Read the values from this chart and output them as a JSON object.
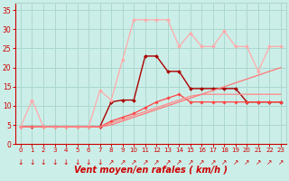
{
  "background_color": "#cceee8",
  "grid_color": "#aad8d0",
  "xlabel": "Vent moyen/en rafales ( km/h )",
  "xlabel_color": "#cc0000",
  "xlabel_fontsize": 7,
  "tick_color": "#cc0000",
  "ylim": [
    0,
    37
  ],
  "xlim": [
    -0.5,
    23.5
  ],
  "yticks": [
    0,
    5,
    10,
    15,
    20,
    25,
    30,
    35
  ],
  "xticks": [
    0,
    1,
    2,
    3,
    4,
    5,
    6,
    7,
    8,
    9,
    10,
    11,
    12,
    13,
    14,
    15,
    16,
    17,
    18,
    19,
    20,
    21,
    22,
    23
  ],
  "series": [
    {
      "x": [
        0,
        1,
        2,
        3,
        4,
        5,
        6,
        7,
        8,
        9,
        10,
        11,
        12,
        13,
        14,
        15,
        16,
        17,
        18,
        19,
        20,
        21,
        22,
        23
      ],
      "y": [
        4.5,
        4.5,
        4.5,
        4.5,
        4.5,
        4.5,
        4.5,
        4.5,
        11,
        11.5,
        11.5,
        23,
        23,
        19,
        19,
        14.5,
        14.5,
        14.5,
        14.5,
        14.5,
        11,
        11,
        11,
        11
      ],
      "color": "#aa0000",
      "lw": 1.0,
      "marker": "D",
      "ms": 2.0
    },
    {
      "x": [
        0,
        1,
        2,
        3,
        4,
        5,
        6,
        7,
        8,
        9,
        10,
        11,
        12,
        13,
        14,
        15,
        16,
        17,
        18,
        19,
        20,
        21,
        22,
        23
      ],
      "y": [
        4.5,
        4.5,
        4.5,
        4.5,
        4.5,
        4.5,
        4.5,
        4.5,
        6,
        7,
        8,
        9.5,
        11,
        12,
        13,
        11,
        11,
        11,
        11,
        11,
        11,
        11,
        11,
        11
      ],
      "color": "#ff4444",
      "lw": 0.9,
      "marker": "D",
      "ms": 1.8
    },
    {
      "x": [
        0,
        1,
        2,
        3,
        4,
        5,
        6,
        7,
        8,
        9,
        10,
        11,
        12,
        13,
        14,
        15,
        16,
        17,
        18,
        19,
        20,
        21,
        22,
        23
      ],
      "y": [
        4.5,
        4.5,
        4.5,
        4.5,
        4.5,
        4.5,
        4.5,
        4.5,
        5.5,
        6.5,
        7.5,
        8.5,
        9.5,
        10.5,
        11.5,
        12.5,
        13,
        13,
        13,
        13,
        13,
        13,
        13,
        13
      ],
      "color": "#ff8888",
      "lw": 0.9,
      "marker": null,
      "ms": 0
    },
    {
      "x": [
        0,
        1,
        2,
        3,
        4,
        5,
        6,
        7,
        8,
        9,
        10,
        11,
        12,
        13,
        14,
        15,
        16,
        17,
        18,
        19,
        20,
        21,
        22,
        23
      ],
      "y": [
        4.5,
        11.5,
        4.5,
        4.5,
        4.5,
        4.5,
        4.5,
        14,
        11.5,
        22,
        32.5,
        32.5,
        32.5,
        32.5,
        25.5,
        29,
        25.5,
        25.5,
        29.5,
        25.5,
        25.5,
        19,
        25.5,
        25.5
      ],
      "color": "#ffaaaa",
      "lw": 0.9,
      "marker": "D",
      "ms": 2.0
    },
    {
      "x": [
        0,
        1,
        2,
        3,
        4,
        5,
        6,
        7,
        8,
        9,
        10,
        11,
        12,
        13,
        14,
        15,
        16,
        17,
        18,
        19,
        20,
        21,
        22,
        23
      ],
      "y": [
        4.5,
        4.5,
        4.5,
        4.5,
        4.5,
        4.5,
        4.5,
        4.5,
        5,
        6,
        7,
        8,
        9,
        10,
        11,
        12,
        13,
        14,
        15,
        16,
        17,
        18,
        19,
        20
      ],
      "color": "#ff7777",
      "lw": 0.9,
      "marker": null,
      "ms": 0
    }
  ],
  "arrow_down_x": [
    0,
    1,
    2,
    3,
    4,
    5,
    6,
    7
  ],
  "arrow_up_x": [
    8,
    9,
    10,
    11,
    12,
    13,
    14,
    15,
    16,
    17,
    18,
    19,
    20,
    21,
    22,
    23
  ],
  "arrow_color": "#cc0000",
  "arrow_fontsize": 5.5
}
